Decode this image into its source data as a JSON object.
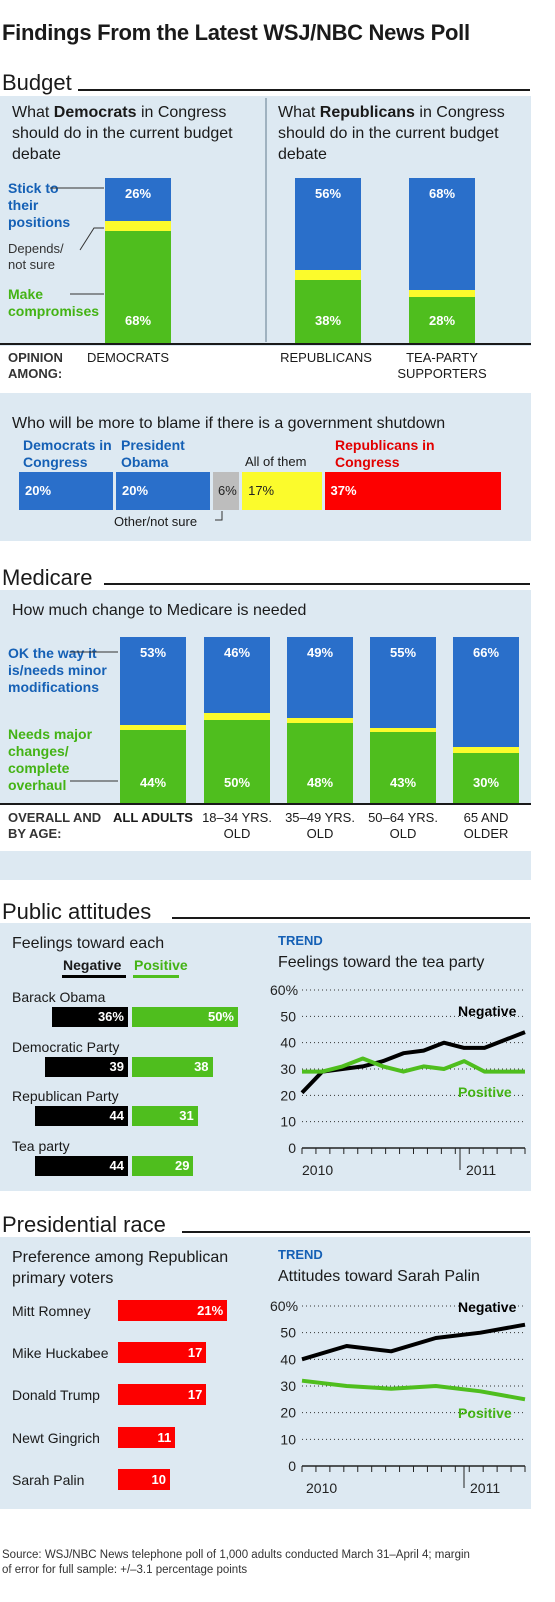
{
  "title": "Findings From the Latest WSJ/NBC News Poll",
  "budget": {
    "section_title": "Budget",
    "dem_question": [
      "What ",
      "Democrats",
      " in Congress should do in the current budget debate"
    ],
    "rep_question": [
      "What ",
      "Republicans",
      " in Congress should do in the current budget debate"
    ],
    "legend_stick": "Stick to their positions",
    "legend_depends": "Depends/ not sure",
    "legend_compromise": "Make compromises",
    "opinion_label": "OPINION AMONG:",
    "blame_question": "Who will be more to blame if there is a government shutdown",
    "blame_other_label": "Other/not sure"
  },
  "medicare": {
    "section_title": "Medicare",
    "question": "How much change to Medicare is needed",
    "legend_ok": "OK the way it is/needs minor modifications",
    "legend_major": "Needs major changes/ complete overhaul",
    "overall_label": "OVERALL AND BY AGE:"
  },
  "attitudes": {
    "section_title": "Public attitudes",
    "feelings_title": "Feelings toward each",
    "legend_negative": "Negative",
    "legend_positive": "Positive",
    "trend_tag": "TREND",
    "trend_title": "Feelings toward the tea party"
  },
  "race": {
    "section_title": "Presidential race",
    "pref_title": "Preference among Republican primary voters",
    "trend_tag": "TREND",
    "trend_title": "Attitudes toward Sarah Palin"
  },
  "source": "Source: WSJ/NBC News telephone poll of 1,000 adults conducted March 31–April 4; margin of error for full sample: +/–3.1 percentage points",
  "colors": {
    "blue": "#2a6fca",
    "yellow": "#fbfb2c",
    "green": "#4fbe1e",
    "red": "#fd0000",
    "black": "#000000",
    "gray": "#bdbdbd",
    "label_blue": "#1560b5"
  },
  "chart_data": [
    {
      "id": "budget",
      "type": "bar",
      "stacked": true,
      "categories": [
        "DEMOCRATS",
        "REPUBLICANS",
        "TEA-PARTY SUPPORTERS"
      ],
      "series": [
        {
          "name": "Stick to their positions",
          "values": [
            26,
            56,
            68
          ]
        },
        {
          "name": "Depends/ not sure",
          "values": [
            6,
            6,
            4
          ]
        },
        {
          "name": "Make compromises",
          "values": [
            68,
            38,
            28
          ]
        }
      ],
      "value_labels": [
        [
          "26%",
          "56%",
          "68%"
        ],
        [
          "68%",
          "38%",
          "28%"
        ]
      ]
    },
    {
      "id": "blame",
      "type": "bar",
      "stacked": true,
      "orientation": "horizontal",
      "categories": [
        "Democrats in Congress",
        "President Obama",
        "Other/not sure",
        "All of them",
        "Republicans in Congress"
      ],
      "values": [
        20,
        20,
        6,
        17,
        37
      ],
      "labels": [
        "20%",
        "20%",
        "6%",
        "17%",
        "37%"
      ]
    },
    {
      "id": "medicare",
      "type": "bar",
      "stacked": true,
      "categories": [
        "ALL ADULTS",
        "18–34 YRS. OLD",
        "35–49 YRS. OLD",
        "50–64 YRS. OLD",
        "65 AND OLDER"
      ],
      "series": [
        {
          "name": "OK the way it is/needs minor modifications",
          "values": [
            53,
            46,
            49,
            55,
            66
          ]
        },
        {
          "name": "Needs major changes/ complete overhaul",
          "values": [
            44,
            50,
            48,
            43,
            30
          ]
        }
      ],
      "value_labels": [
        [
          "53%",
          "46%",
          "49%",
          "55%",
          "66%"
        ],
        [
          "44%",
          "50%",
          "48%",
          "43%",
          "30%"
        ]
      ]
    },
    {
      "id": "feelings",
      "type": "bar",
      "orientation": "horizontal",
      "categories": [
        "Barack Obama",
        "Democratic Party",
        "Republican Party",
        "Tea party"
      ],
      "series": [
        {
          "name": "Negative",
          "values": [
            36,
            39,
            44,
            44
          ]
        },
        {
          "name": "Positive",
          "values": [
            50,
            38,
            31,
            29
          ]
        }
      ],
      "value_labels": [
        [
          "36%",
          "39",
          "44",
          "44"
        ],
        [
          "50%",
          "38",
          "31",
          "29"
        ]
      ]
    },
    {
      "id": "teaparty_trend",
      "type": "line",
      "yticks": [
        "0",
        "10",
        "20",
        "30",
        "40",
        "50",
        "60%"
      ],
      "ylim": [
        0,
        60
      ],
      "xlabels": [
        "2010",
        "2011"
      ],
      "series": [
        {
          "name": "Negative",
          "values": [
            21,
            29,
            30,
            31,
            33,
            36,
            37,
            40,
            38,
            38,
            41,
            44
          ]
        },
        {
          "name": "Positive",
          "values": [
            29,
            29,
            31,
            34,
            31,
            29,
            31,
            30,
            33,
            29,
            29,
            29
          ]
        }
      ]
    },
    {
      "id": "preference",
      "type": "bar",
      "orientation": "horizontal",
      "categories": [
        "Mitt Romney",
        "Mike Huckabee",
        "Donald Trump",
        "Newt Gingrich",
        "Sarah Palin"
      ],
      "values": [
        21,
        17,
        17,
        11,
        10
      ],
      "value_labels": [
        "21%",
        "17",
        "17",
        "11",
        "10"
      ]
    },
    {
      "id": "palin_trend",
      "type": "line",
      "yticks": [
        "0",
        "10",
        "20",
        "30",
        "40",
        "50",
        "60%"
      ],
      "ylim": [
        0,
        60
      ],
      "xlabels": [
        "2010",
        "2011"
      ],
      "series": [
        {
          "name": "Negative",
          "values": [
            40,
            45,
            43,
            48,
            50,
            53
          ]
        },
        {
          "name": "Positive",
          "values": [
            32,
            30,
            29,
            30,
            28,
            25
          ]
        }
      ]
    }
  ]
}
